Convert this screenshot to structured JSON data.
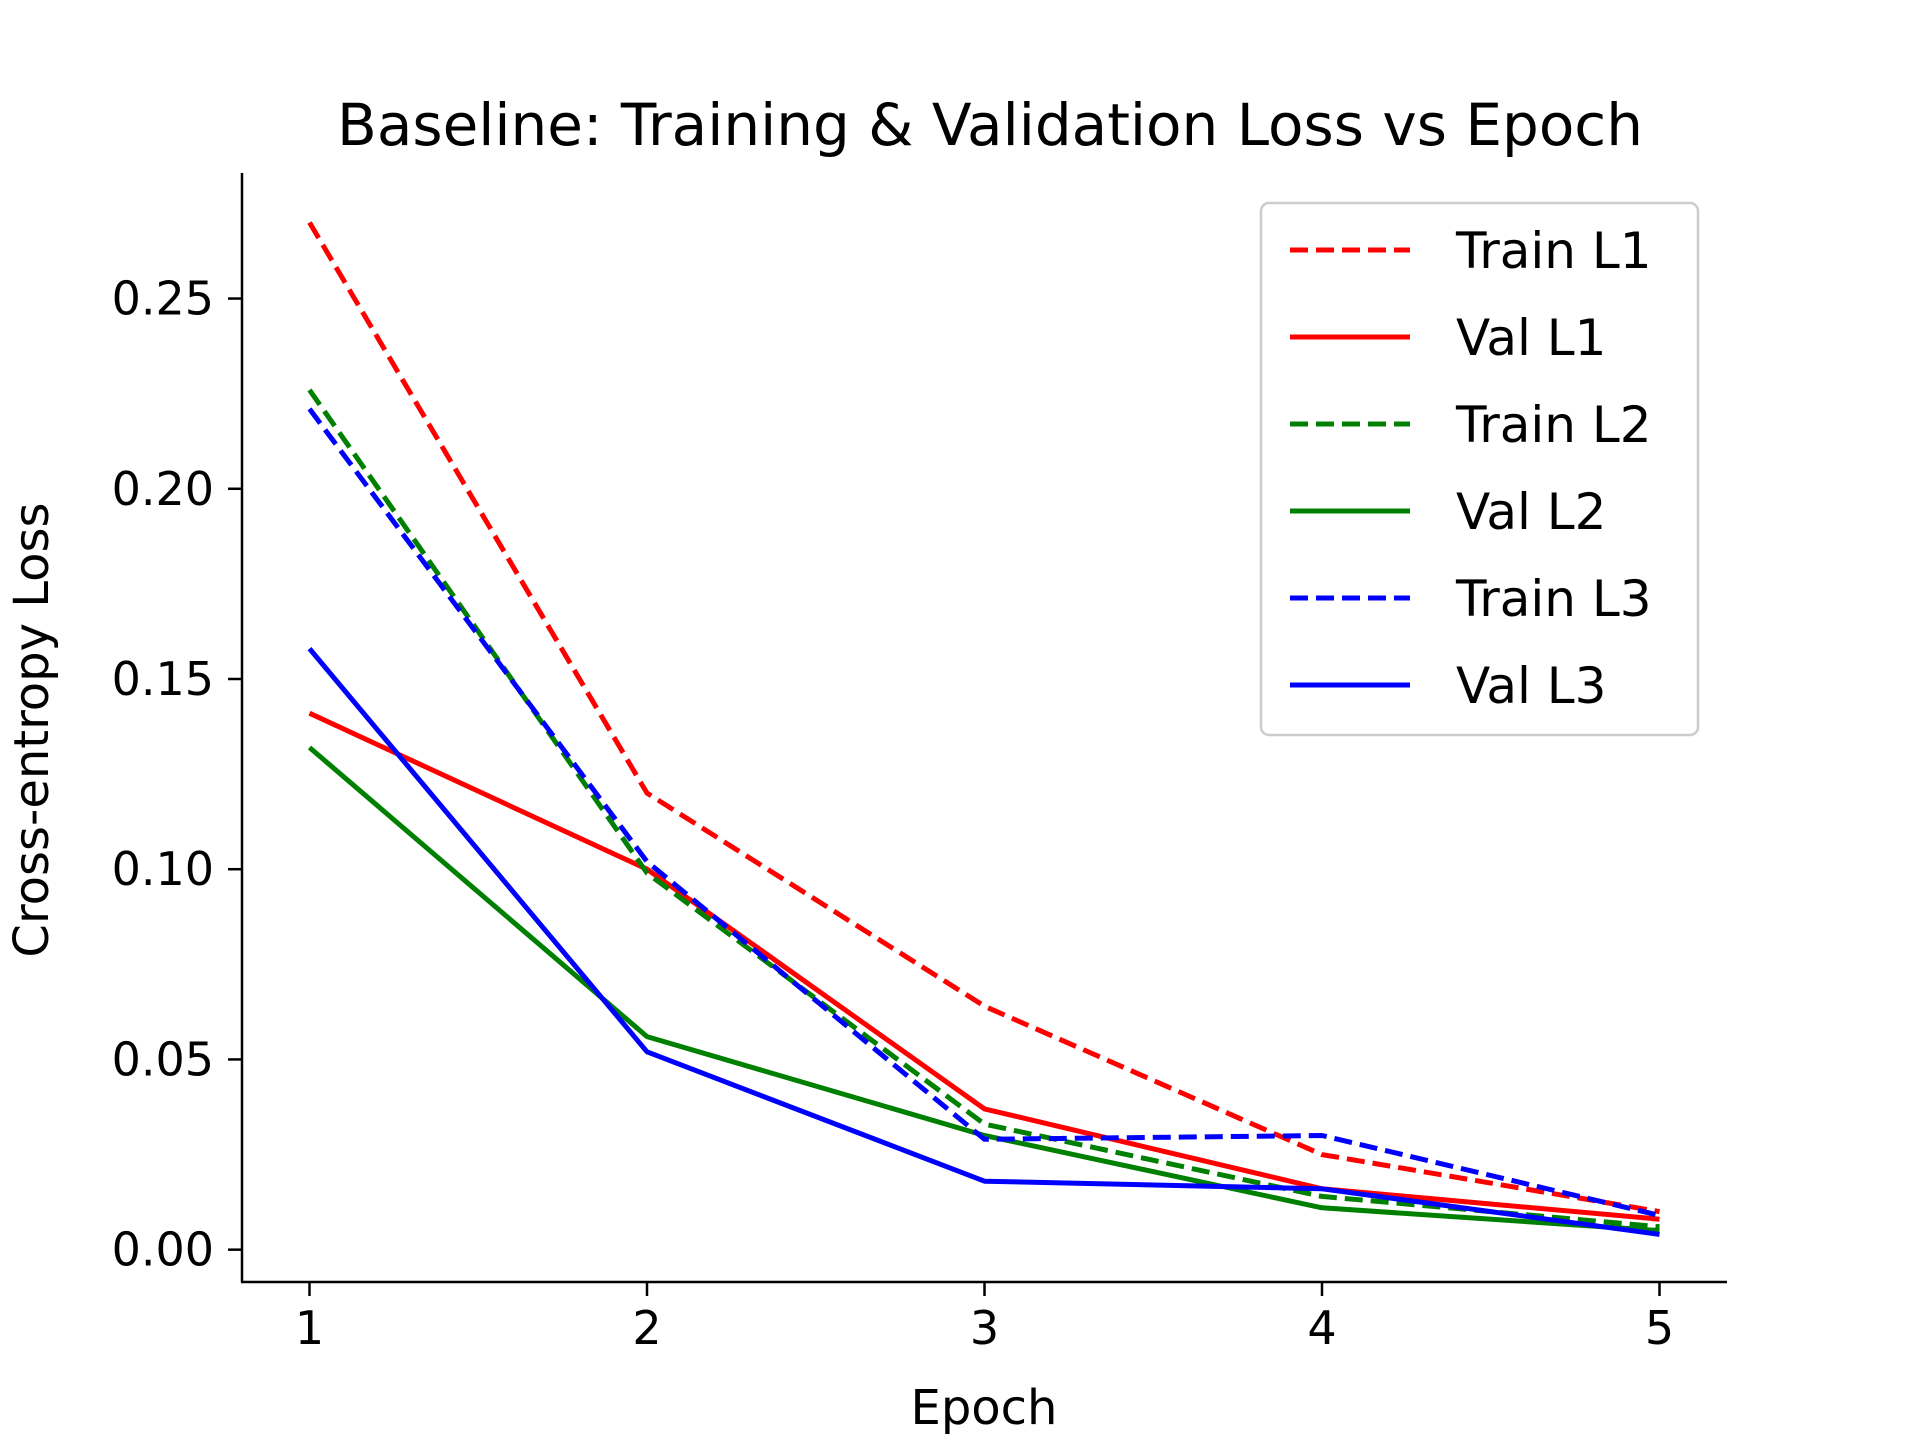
{
  "chart_data": {
    "type": "line",
    "title": "Baseline: Training & Validation Loss vs Epoch",
    "xlabel": "Epoch",
    "ylabel": "Cross-entropy Loss",
    "x": [
      1,
      2,
      3,
      4,
      5
    ],
    "xlim": [
      0.8,
      5.2
    ],
    "ylim": [
      -0.0085,
      0.283
    ],
    "x_ticks": [
      "1",
      "2",
      "3",
      "4",
      "5"
    ],
    "y_ticks": [
      "0.00",
      "0.05",
      "0.10",
      "0.15",
      "0.20",
      "0.25"
    ],
    "grid": false,
    "legend_position": "top-right",
    "series": [
      {
        "name": "Train L1",
        "color": "#ff0000",
        "dash": "dashed",
        "values": [
          0.27,
          0.12,
          0.064,
          0.025,
          0.01
        ]
      },
      {
        "name": "Val L1",
        "color": "#ff0000",
        "dash": "solid",
        "values": [
          0.141,
          0.1,
          0.037,
          0.016,
          0.008
        ]
      },
      {
        "name": "Train L2",
        "color": "#008000",
        "dash": "dashed",
        "values": [
          0.226,
          0.099,
          0.033,
          0.014,
          0.006
        ]
      },
      {
        "name": "Val L2",
        "color": "#008000",
        "dash": "solid",
        "values": [
          0.132,
          0.056,
          0.03,
          0.011,
          0.005
        ]
      },
      {
        "name": "Train L3",
        "color": "#0000ff",
        "dash": "dashed",
        "values": [
          0.221,
          0.102,
          0.029,
          0.03,
          0.009
        ]
      },
      {
        "name": "Val L3",
        "color": "#0000ff",
        "dash": "solid",
        "values": [
          0.158,
          0.052,
          0.018,
          0.016,
          0.004
        ]
      }
    ]
  }
}
